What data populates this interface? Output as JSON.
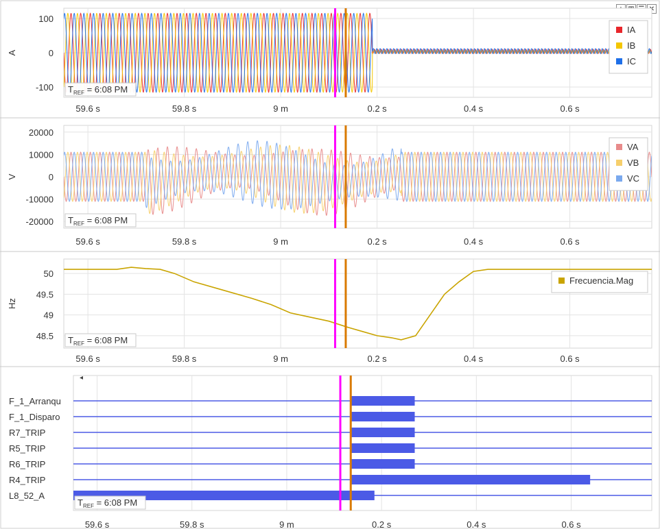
{
  "toolbar": {
    "buttons": [
      {
        "icon": "plus-icon",
        "glyph": "+"
      },
      {
        "icon": "columns-icon",
        "glyph": "▥"
      },
      {
        "icon": "rows-icon",
        "glyph": "☰"
      },
      {
        "icon": "close-icon",
        "glyph": "✕"
      }
    ]
  },
  "x_axis": {
    "ticks": [
      {
        "t": 59.6,
        "label": "59.6 s"
      },
      {
        "t": 59.8,
        "label": "59.8 s"
      },
      {
        "t": 60.0,
        "label": "9 m"
      },
      {
        "t": 60.2,
        "label": "0.2 s"
      },
      {
        "t": 60.4,
        "label": "0.4 s"
      },
      {
        "t": 60.6,
        "label": "0.6 s"
      }
    ],
    "range": [
      59.55,
      60.77
    ]
  },
  "cursors": [
    {
      "name": "magenta-cursor",
      "t": 60.113,
      "color": "#ff00ff"
    },
    {
      "name": "orange-cursor",
      "t": 60.135,
      "color": "#d97a00"
    }
  ],
  "tref_label": "6:08 PM",
  "collapse_arrow": "◂",
  "chart_data": [
    {
      "type": "line",
      "ylabel": "A",
      "yticks": [
        100,
        0,
        -100
      ],
      "ylim": [
        -130,
        130
      ],
      "series": [
        {
          "name": "IA",
          "color": "#e8262b",
          "amplitude": 115,
          "phase_deg": 0,
          "pre_fault_until": 60.19,
          "post_fault_level": 10
        },
        {
          "name": "IB",
          "color": "#f4c600",
          "amplitude": 115,
          "phase_deg": 120,
          "pre_fault_until": 60.19,
          "post_fault_level": 8
        },
        {
          "name": "IC",
          "color": "#1e6fe8",
          "amplitude": 115,
          "phase_deg": 240,
          "pre_fault_until": 60.19,
          "post_fault_level": 12
        }
      ],
      "legend": "top-right",
      "grid": true
    },
    {
      "type": "line",
      "ylabel": "V",
      "yticks": [
        20000,
        10000,
        0,
        -10000,
        -20000
      ],
      "ylim": [
        -23000,
        23000
      ],
      "series": [
        {
          "name": "VA",
          "color": "#e88b8b",
          "amplitude": 11000,
          "phase_deg": 0
        },
        {
          "name": "VB",
          "color": "#f6cf6c",
          "amplitude": 11000,
          "phase_deg": 120
        },
        {
          "name": "VC",
          "color": "#7aa9ee",
          "amplitude": 11000,
          "phase_deg": 240
        }
      ],
      "legend": "top-right",
      "grid": true
    },
    {
      "type": "line",
      "ylabel": "Hz",
      "yticks": [
        50,
        49.5,
        49,
        48.5
      ],
      "ylim": [
        48.2,
        50.35
      ],
      "series": [
        {
          "name": "Frecuencia.Mag",
          "color": "#c9a400",
          "x": [
            59.55,
            59.62,
            59.66,
            59.69,
            59.72,
            59.75,
            59.78,
            59.82,
            59.88,
            59.94,
            59.98,
            60.02,
            60.06,
            60.1,
            60.14,
            60.17,
            60.2,
            60.23,
            60.25,
            60.28,
            60.31,
            60.34,
            60.37,
            60.4,
            60.43,
            60.77
          ],
          "y": [
            50.1,
            50.1,
            50.1,
            50.15,
            50.12,
            50.1,
            50.0,
            49.8,
            49.6,
            49.4,
            49.25,
            49.05,
            48.95,
            48.85,
            48.7,
            48.6,
            48.5,
            48.45,
            48.4,
            48.5,
            49.0,
            49.5,
            49.8,
            50.05,
            50.1,
            50.1
          ]
        }
      ],
      "legend": "top-right",
      "grid": true
    },
    {
      "type": "digital",
      "channels": [
        {
          "name": "F_1_Arranqu",
          "active": [
            [
              60.135,
              60.27
            ]
          ]
        },
        {
          "name": "F_1_Disparo",
          "active": [
            [
              60.135,
              60.27
            ]
          ]
        },
        {
          "name": "R7_TRIP",
          "active": [
            [
              60.135,
              60.27
            ]
          ]
        },
        {
          "name": "R5_TRIP",
          "active": [
            [
              60.135,
              60.27
            ]
          ]
        },
        {
          "name": "R6_TRIP",
          "active": [
            [
              60.135,
              60.27
            ]
          ]
        },
        {
          "name": "R4_TRIP",
          "active": [
            [
              60.135,
              60.64
            ]
          ]
        },
        {
          "name": "L8_52_A",
          "active": [
            [
              59.55,
              60.185
            ]
          ]
        }
      ],
      "color": "#4b5ae6",
      "grid": true
    }
  ]
}
